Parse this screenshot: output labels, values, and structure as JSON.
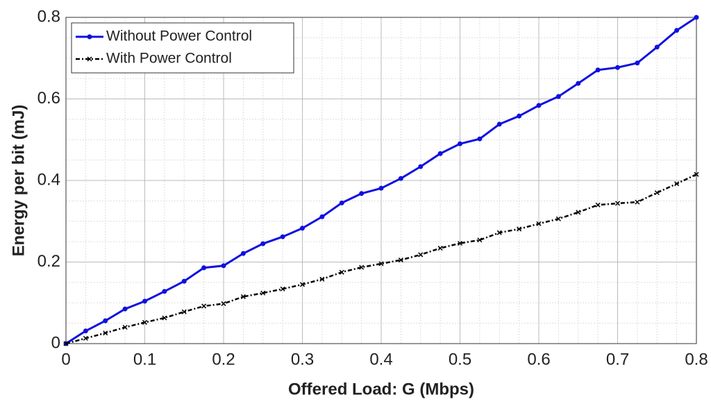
{
  "chart_data": {
    "type": "line",
    "xlabel": "Offered Load: G (Mbps)",
    "ylabel": "Energy per bit (mJ)",
    "x": [
      0,
      0.025,
      0.05,
      0.075,
      0.1,
      0.125,
      0.15,
      0.175,
      0.2,
      0.225,
      0.25,
      0.275,
      0.3,
      0.325,
      0.35,
      0.375,
      0.4,
      0.425,
      0.45,
      0.475,
      0.5,
      0.525,
      0.55,
      0.575,
      0.6,
      0.625,
      0.65,
      0.675,
      0.7,
      0.725,
      0.75,
      0.775,
      0.8
    ],
    "series": [
      {
        "name": "Without Power Control",
        "color": "#1010e0",
        "marker": "circle",
        "linestyle": "solid",
        "values": [
          0,
          0.031,
          0.056,
          0.085,
          0.104,
          0.128,
          0.153,
          0.186,
          0.191,
          0.221,
          0.245,
          0.262,
          0.283,
          0.311,
          0.345,
          0.368,
          0.381,
          0.405,
          0.434,
          0.466,
          0.49,
          0.502,
          0.538,
          0.558,
          0.584,
          0.606,
          0.638,
          0.671,
          0.677,
          0.688,
          0.727,
          0.768,
          0.8
        ]
      },
      {
        "name": "With Power Control",
        "color": "#000000",
        "marker": "x",
        "linestyle": "dashdot",
        "values": [
          0,
          0.013,
          0.026,
          0.04,
          0.052,
          0.063,
          0.078,
          0.092,
          0.098,
          0.115,
          0.124,
          0.134,
          0.145,
          0.158,
          0.175,
          0.187,
          0.196,
          0.205,
          0.218,
          0.234,
          0.246,
          0.254,
          0.272,
          0.281,
          0.294,
          0.306,
          0.322,
          0.34,
          0.344,
          0.347,
          0.37,
          0.392,
          0.415
        ]
      }
    ],
    "xlim": [
      0,
      0.8
    ],
    "xticks": [
      0,
      0.1,
      0.2,
      0.3,
      0.4,
      0.5,
      0.6,
      0.7,
      0.8
    ],
    "ylim": [
      0,
      0.8
    ],
    "yticks": [
      0,
      0.2,
      0.4,
      0.6,
      0.8
    ],
    "grid": true,
    "minor_grid": true,
    "legend": "upper left"
  }
}
